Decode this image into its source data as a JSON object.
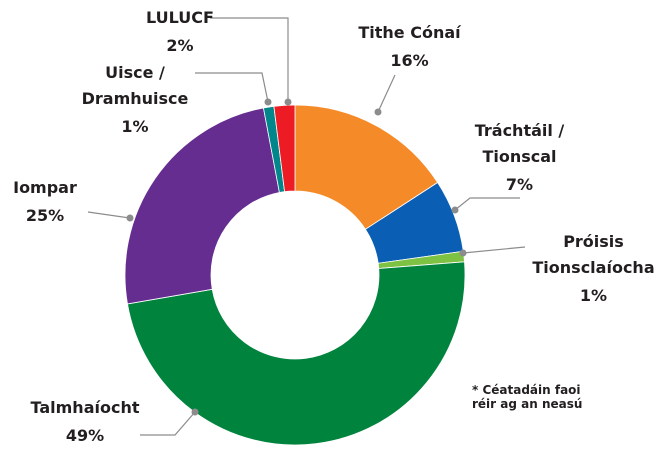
{
  "chart_data": {
    "type": "donut",
    "categories": [
      "Tithe Cónaí",
      "Tráchtáil / Tionscal",
      "Próisis Tionsclaíocha",
      "Talmhaíocht",
      "Iompar",
      "Uisce / Dramhuisce",
      "LULUCF"
    ],
    "values": [
      16,
      7,
      1,
      49,
      25,
      1,
      2
    ],
    "value_labels": [
      "16%",
      "7%",
      "1%",
      "49%",
      "25%",
      "1%",
      "2%"
    ],
    "colors": [
      "#f58a28",
      "#0a5fb4",
      "#7dc242",
      "#00843d",
      "#662d91",
      "#00868b",
      "#ed1c24"
    ],
    "annotation": "* Céatadáin faoi réir ag an neasú"
  }
}
